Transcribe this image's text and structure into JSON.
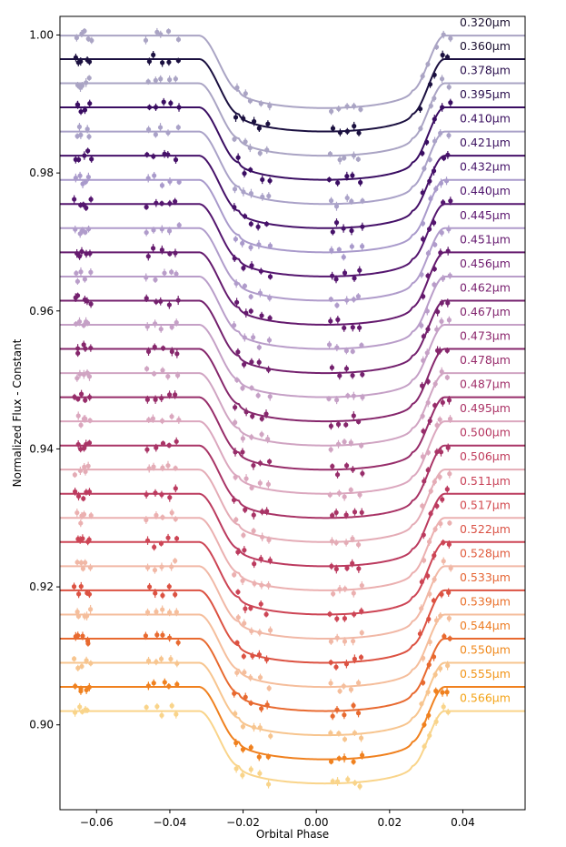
{
  "chart_data": {
    "type": "line",
    "title": "",
    "xlabel": "Orbital Phase",
    "ylabel": "Normalized Flux - Constant",
    "xlim": [
      -0.07,
      0.057
    ],
    "ylim": [
      0.8877,
      1.0027
    ],
    "grid": false,
    "legend": "inline-right",
    "x_ticks": [
      -0.06,
      -0.04,
      -0.02,
      0.0,
      0.02,
      0.04
    ],
    "x_tick_labels": [
      "−0.06",
      "−0.04",
      "−0.02",
      "0.00",
      "0.02",
      "0.04"
    ],
    "y_ticks": [
      0.9,
      0.92,
      0.94,
      0.96,
      0.98,
      1.0
    ],
    "y_tick_labels": [
      "0.90",
      "0.92",
      "0.94",
      "0.96",
      "0.98",
      "1.00"
    ],
    "transit_model": {
      "ingress_start": -0.032,
      "ingress_end": -0.021,
      "egress_start": 0.026,
      "egress_end": 0.035,
      "depth": 0.0105,
      "limb_darkening_extra": 0.0025
    },
    "observed_phase_windows": [
      [
        -0.066,
        -0.0615
      ],
      [
        -0.047,
        -0.037
      ],
      [
        -0.023,
        -0.012
      ],
      [
        0.003,
        0.013
      ],
      [
        0.028,
        0.037
      ]
    ],
    "series": [
      {
        "name": "0.320μm",
        "baseline": 0.99991,
        "color": "#aaa4c4"
      },
      {
        "name": "0.360μm",
        "baseline": 0.99651,
        "color": "#1b1040"
      },
      {
        "name": "0.378μm",
        "baseline": 0.993,
        "color": "#aaa4c4"
      },
      {
        "name": "0.395μm",
        "baseline": 0.98951,
        "color": "#3a0d62"
      },
      {
        "name": "0.410μm",
        "baseline": 0.986,
        "color": "#aaa2c8"
      },
      {
        "name": "0.421μm",
        "baseline": 0.9825,
        "color": "#461169"
      },
      {
        "name": "0.432μm",
        "baseline": 0.979,
        "color": "#a99acb"
      },
      {
        "name": "0.440μm",
        "baseline": 0.9755,
        "color": "#55166f"
      },
      {
        "name": "0.445μm",
        "baseline": 0.972,
        "color": "#b09ccb"
      },
      {
        "name": "0.451μm",
        "baseline": 0.9685,
        "color": "#651a6e"
      },
      {
        "name": "0.456μm",
        "baseline": 0.96499,
        "color": "#b99dc9"
      },
      {
        "name": "0.462μm",
        "baseline": 0.96149,
        "color": "#74216e"
      },
      {
        "name": "0.467μm",
        "baseline": 0.958,
        "color": "#c5a0c6"
      },
      {
        "name": "0.473μm",
        "baseline": 0.9545,
        "color": "#86276c"
      },
      {
        "name": "0.478μm",
        "baseline": 0.95099,
        "color": "#d0a4c2"
      },
      {
        "name": "0.487μm",
        "baseline": 0.94749,
        "color": "#972d6a"
      },
      {
        "name": "0.495μm",
        "baseline": 0.944,
        "color": "#dba7be"
      },
      {
        "name": "0.500μm",
        "baseline": 0.94049,
        "color": "#a93466"
      },
      {
        "name": "0.506μm",
        "baseline": 0.937,
        "color": "#e4acb6"
      },
      {
        "name": "0.511μm",
        "baseline": 0.93349,
        "color": "#bc3b5f"
      },
      {
        "name": "0.517μm",
        "baseline": 0.93,
        "color": "#ebb0b0"
      },
      {
        "name": "0.522μm",
        "baseline": 0.9265,
        "color": "#cd4555"
      },
      {
        "name": "0.528μm",
        "baseline": 0.92299,
        "color": "#f1b8a6"
      },
      {
        "name": "0.533μm",
        "baseline": 0.9195,
        "color": "#dc5242"
      },
      {
        "name": "0.539μm",
        "baseline": 0.91599,
        "color": "#f5be9c"
      },
      {
        "name": "0.544μm",
        "baseline": 0.9125,
        "color": "#e86a30"
      },
      {
        "name": "0.550μm",
        "baseline": 0.909,
        "color": "#f7c58f"
      },
      {
        "name": "0.555μm",
        "baseline": 0.9055,
        "color": "#f0811f"
      },
      {
        "name": "0.566μm",
        "baseline": 0.902,
        "color": "#f9d48a"
      }
    ],
    "label_colors": [
      "#1a1030",
      "#1a1030",
      "#2a0f4d",
      "#2a0f4d",
      "#3b1160",
      "#3b1160",
      "#461469",
      "#4f156d",
      "#5c176f",
      "#65196f",
      "#6f1c6f",
      "#781f6f",
      "#81236d",
      "#8c266c",
      "#962a6a",
      "#a02e68",
      "#ab3265",
      "#b63761",
      "#c03c5c",
      "#c94157",
      "#d34a4f",
      "#da5245",
      "#e05b3d",
      "#e56534",
      "#ea702b",
      "#ed7d24",
      "#f0891c",
      "#f29417",
      "#f4a418"
    ]
  }
}
